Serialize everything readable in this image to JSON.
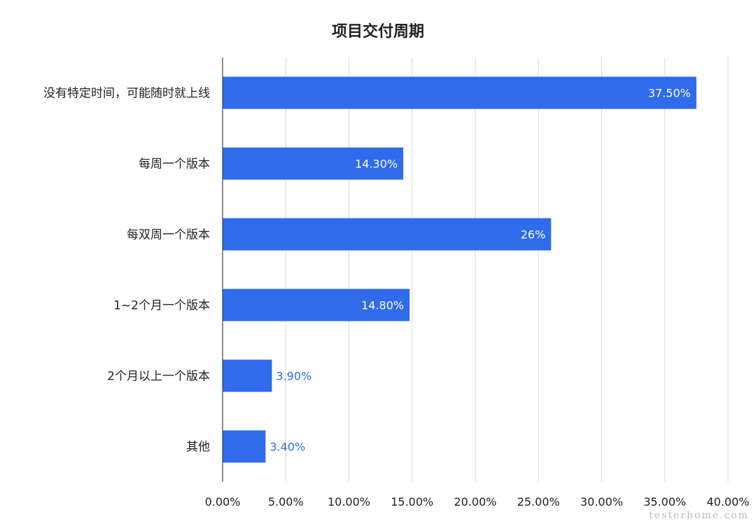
{
  "chart_data": {
    "type": "bar",
    "orientation": "horizontal",
    "title": "项目交付周期",
    "categories": [
      "没有特定时间，可能随时就上线",
      "每周一个版本",
      "每双周一个版本",
      "1~2个月一个版本",
      "2个月以上一个版本",
      "其他"
    ],
    "values": [
      37.5,
      14.3,
      26,
      14.8,
      3.9,
      3.4
    ],
    "data_labels": [
      "37.50%",
      "14.30%",
      "26%",
      "14.80%",
      "3.90%",
      "3.40%"
    ],
    "xlim": [
      0,
      40
    ],
    "x_ticks": [
      0,
      5,
      10,
      15,
      20,
      25,
      30,
      35,
      40
    ],
    "x_tick_labels": [
      "0.00%",
      "5.00%",
      "10.00%",
      "15.00%",
      "20.00%",
      "25.00%",
      "30.00%",
      "35.00%",
      "40.00%"
    ],
    "grid": "vertical",
    "bar_color": "#2f6bea",
    "label_inside_color": "#ffffff",
    "label_outside_color": "#2f6bea"
  },
  "watermark": "testerhome.com"
}
